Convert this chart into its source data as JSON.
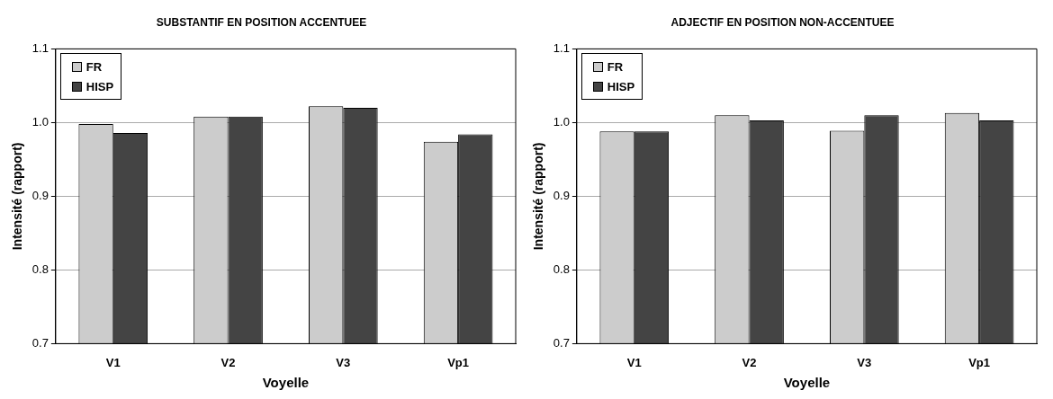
{
  "chart_data": [
    {
      "type": "bar",
      "title": "SUBSTANTIF EN POSITION ACCENTUEE",
      "xlabel": "Voyelle",
      "ylabel": "Intensité (rapport)",
      "categories": [
        "V1",
        "V2",
        "V3",
        "Vp1"
      ],
      "series": [
        {
          "name": "FR",
          "color": "#cccccc",
          "values": [
            0.998,
            1.008,
            1.022,
            0.974
          ]
        },
        {
          "name": "HISP",
          "color": "#444444",
          "values": [
            0.986,
            1.008,
            1.02,
            0.984
          ]
        }
      ],
      "ylim": [
        0.7,
        1.1
      ],
      "yticks": [
        {
          "value": 0.7,
          "label": "0.7"
        },
        {
          "value": 0.8,
          "label": "0.8"
        },
        {
          "value": 0.9,
          "label": "0.9"
        },
        {
          "value": 1.0,
          "label": "1.0"
        },
        {
          "value": 1.1,
          "label": "1.1"
        }
      ],
      "grid": "y",
      "legend": "top left"
    },
    {
      "type": "bar",
      "title": "ADJECTIF EN POSITION NON-ACCENTUEE",
      "xlabel": "Voyelle",
      "ylabel": "Intensité (rapport)",
      "categories": [
        "V1",
        "V2",
        "V3",
        "Vp1"
      ],
      "series": [
        {
          "name": "FR",
          "color": "#cccccc",
          "values": [
            0.988,
            1.01,
            0.989,
            1.013
          ]
        },
        {
          "name": "HISP",
          "color": "#444444",
          "values": [
            0.988,
            1.003,
            1.01,
            1.003
          ]
        }
      ],
      "ylim": [
        0.7,
        1.1
      ],
      "yticks": [
        {
          "value": 0.7,
          "label": "0.7"
        },
        {
          "value": 0.8,
          "label": "0.8"
        },
        {
          "value": 0.9,
          "label": "0.9"
        },
        {
          "value": 1.0,
          "label": "1.0"
        },
        {
          "value": 1.1,
          "label": "1.1"
        }
      ],
      "grid": "y",
      "legend": "top left"
    }
  ]
}
